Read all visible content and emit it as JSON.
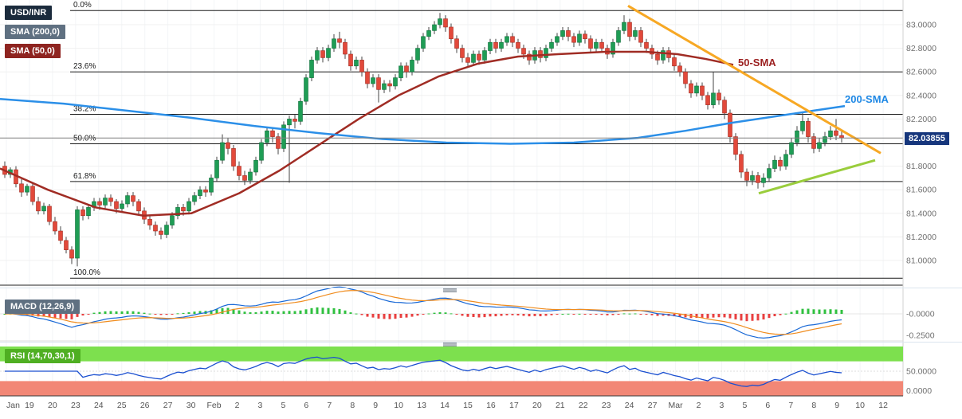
{
  "legend": {
    "symbol": "USD/INR",
    "sma200": "SMA (200,0)",
    "sma50": "SMA (50,0)",
    "macd": "MACD (12,26,9)",
    "rsi": "RSI (14,70,30,1)"
  },
  "annotations": {
    "sma50_line": "50-SMA",
    "sma200_line": "200-SMA"
  },
  "price_axis": {
    "current_price": "82.03855",
    "ticks": [
      {
        "label": "83.0000",
        "price": 83.0
      },
      {
        "label": "82.8000",
        "price": 82.8
      },
      {
        "label": "82.6000",
        "price": 82.6
      },
      {
        "label": "82.4000",
        "price": 82.4
      },
      {
        "label": "82.2000",
        "price": 82.2
      },
      {
        "label": "81.8000",
        "price": 81.8
      },
      {
        "label": "81.6000",
        "price": 81.6
      },
      {
        "label": "81.4000",
        "price": 81.4
      },
      {
        "label": "81.2000",
        "price": 81.2
      },
      {
        "label": "81.0000",
        "price": 81.0
      }
    ]
  },
  "macd_axis": [
    {
      "label": "-0.0000",
      "value": 0
    },
    {
      "label": "-0.2500",
      "value": -0.25
    }
  ],
  "rsi_axis": [
    {
      "label": "50.0000",
      "value": 50
    },
    {
      "label": "0.0000",
      "value": 0
    }
  ],
  "x_axis": {
    "labels": [
      "Jan",
      "19",
      "20",
      "23",
      "24",
      "25",
      "26",
      "27",
      "30",
      "Feb",
      "2",
      "3",
      "5",
      "6",
      "7",
      "8",
      "9",
      "10",
      "13",
      "14",
      "15",
      "16",
      "17",
      "20",
      "21",
      "22",
      "23",
      "24",
      "27",
      "Mar",
      "2",
      "3",
      "5",
      "6",
      "7",
      "8",
      "9",
      "10",
      "12"
    ]
  },
  "fib_levels": [
    {
      "label": "0.0%",
      "price": 83.12
    },
    {
      "label": "23.6%",
      "price": 82.6
    },
    {
      "label": "38.2%",
      "price": 82.24
    },
    {
      "label": "50.0%",
      "price": 81.99
    },
    {
      "label": "61.8%",
      "price": 81.67
    },
    {
      "label": "100.0%",
      "price": 80.85
    }
  ],
  "chart_data": {
    "type": "candlestick",
    "title": "USD/INR with SMA(50), SMA(200), Fibonacci retracement, MACD(12,26,9), RSI(14,70,30,1)",
    "y_range": [
      80.85,
      83.2
    ],
    "current_price": 82.03855,
    "ohlc": [
      [
        81.8,
        81.84,
        81.7,
        81.73
      ],
      [
        81.73,
        81.79,
        81.7,
        81.77
      ],
      [
        81.77,
        81.8,
        81.62,
        81.65
      ],
      [
        81.65,
        81.69,
        81.54,
        81.58
      ],
      [
        81.58,
        81.65,
        81.55,
        81.63
      ],
      [
        81.63,
        81.66,
        81.47,
        81.5
      ],
      [
        81.5,
        81.54,
        81.39,
        81.42
      ],
      [
        81.42,
        81.49,
        81.39,
        81.46
      ],
      [
        81.46,
        81.48,
        81.3,
        81.33
      ],
      [
        81.33,
        81.37,
        81.22,
        81.25
      ],
      [
        81.25,
        81.29,
        81.14,
        81.17
      ],
      [
        81.17,
        81.2,
        81.06,
        81.09
      ],
      [
        81.09,
        81.12,
        80.97,
        81.02
      ],
      [
        81.02,
        81.46,
        80.95,
        81.43
      ],
      [
        81.43,
        81.46,
        81.34,
        81.38
      ],
      [
        81.38,
        81.48,
        81.35,
        81.45
      ],
      [
        81.45,
        81.53,
        81.42,
        81.5
      ],
      [
        81.5,
        81.53,
        81.43,
        81.47
      ],
      [
        81.47,
        81.56,
        81.44,
        81.53
      ],
      [
        81.53,
        81.56,
        81.46,
        81.5
      ],
      [
        81.5,
        81.52,
        81.4,
        81.44
      ],
      [
        81.44,
        81.51,
        81.41,
        81.48
      ],
      [
        81.48,
        81.58,
        81.45,
        81.55
      ],
      [
        81.55,
        81.58,
        81.46,
        81.5
      ],
      [
        81.5,
        81.52,
        81.38,
        81.42
      ],
      [
        81.42,
        81.45,
        81.31,
        81.35
      ],
      [
        81.35,
        81.38,
        81.26,
        81.3
      ],
      [
        81.3,
        81.33,
        81.21,
        81.25
      ],
      [
        81.25,
        81.28,
        81.18,
        81.22
      ],
      [
        81.22,
        81.33,
        81.19,
        81.3
      ],
      [
        81.3,
        81.41,
        81.27,
        81.38
      ],
      [
        81.38,
        81.48,
        81.35,
        81.45
      ],
      [
        81.45,
        81.48,
        81.38,
        81.42
      ],
      [
        81.42,
        81.53,
        81.39,
        81.5
      ],
      [
        81.5,
        81.58,
        81.47,
        81.55
      ],
      [
        81.55,
        81.63,
        81.52,
        81.6
      ],
      [
        81.6,
        81.63,
        81.54,
        81.58
      ],
      [
        81.58,
        81.73,
        81.55,
        81.7
      ],
      [
        81.7,
        81.88,
        81.67,
        81.85
      ],
      [
        81.85,
        82.07,
        81.82,
        82.0
      ],
      [
        82.0,
        82.04,
        81.9,
        81.95
      ],
      [
        81.95,
        81.98,
        81.76,
        81.8
      ],
      [
        81.8,
        81.84,
        81.68,
        81.72
      ],
      [
        81.72,
        81.76,
        81.64,
        81.68
      ],
      [
        81.68,
        81.78,
        81.65,
        81.75
      ],
      [
        81.75,
        81.88,
        81.72,
        81.85
      ],
      [
        81.85,
        82.03,
        81.82,
        82.0
      ],
      [
        82.0,
        82.13,
        81.97,
        82.1
      ],
      [
        82.1,
        82.13,
        82.0,
        82.05
      ],
      [
        82.05,
        82.08,
        81.9,
        81.95
      ],
      [
        81.95,
        82.18,
        81.92,
        82.15
      ],
      [
        82.15,
        82.23,
        81.66,
        82.2
      ],
      [
        82.2,
        82.24,
        82.12,
        82.18
      ],
      [
        82.18,
        82.38,
        82.15,
        82.35
      ],
      [
        82.35,
        82.58,
        82.32,
        82.55
      ],
      [
        82.55,
        82.73,
        82.52,
        82.7
      ],
      [
        82.7,
        82.81,
        82.67,
        82.78
      ],
      [
        82.78,
        82.81,
        82.68,
        82.72
      ],
      [
        82.72,
        82.83,
        82.69,
        82.8
      ],
      [
        82.8,
        82.92,
        82.77,
        82.88
      ],
      [
        82.88,
        82.94,
        82.8,
        82.85
      ],
      [
        82.85,
        82.88,
        82.71,
        82.75
      ],
      [
        82.75,
        82.78,
        82.61,
        82.65
      ],
      [
        82.65,
        82.73,
        82.62,
        82.7
      ],
      [
        82.7,
        82.73,
        82.56,
        82.6
      ],
      [
        82.6,
        82.63,
        82.46,
        82.5
      ],
      [
        82.5,
        82.58,
        82.47,
        82.55
      ],
      [
        82.55,
        82.58,
        82.34,
        82.45
      ],
      [
        82.45,
        82.53,
        82.42,
        82.5
      ],
      [
        82.5,
        82.53,
        82.43,
        82.48
      ],
      [
        82.48,
        82.58,
        82.45,
        82.55
      ],
      [
        82.55,
        82.68,
        82.52,
        82.65
      ],
      [
        82.65,
        82.68,
        82.55,
        82.6
      ],
      [
        82.6,
        82.73,
        82.57,
        82.7
      ],
      [
        82.7,
        82.83,
        82.67,
        82.8
      ],
      [
        82.8,
        82.93,
        82.77,
        82.9
      ],
      [
        82.9,
        82.98,
        82.87,
        82.95
      ],
      [
        82.95,
        83.03,
        82.92,
        83.0
      ],
      [
        83.0,
        83.1,
        82.97,
        83.05
      ],
      [
        83.05,
        83.08,
        82.94,
        82.98
      ],
      [
        82.98,
        83.01,
        82.84,
        82.88
      ],
      [
        82.88,
        82.91,
        82.76,
        82.8
      ],
      [
        82.8,
        82.83,
        82.68,
        82.72
      ],
      [
        82.72,
        82.76,
        82.64,
        82.68
      ],
      [
        82.68,
        82.78,
        82.65,
        82.75
      ],
      [
        82.75,
        82.78,
        82.66,
        82.7
      ],
      [
        82.7,
        82.81,
        82.67,
        82.78
      ],
      [
        82.78,
        82.88,
        82.75,
        82.85
      ],
      [
        82.85,
        82.88,
        82.76,
        82.8
      ],
      [
        82.8,
        82.88,
        82.77,
        82.85
      ],
      [
        82.85,
        82.93,
        82.82,
        82.9
      ],
      [
        82.9,
        82.93,
        82.81,
        82.85
      ],
      [
        82.85,
        82.88,
        82.76,
        82.8
      ],
      [
        82.8,
        82.83,
        82.71,
        82.75
      ],
      [
        82.75,
        82.78,
        82.66,
        82.7
      ],
      [
        82.7,
        82.81,
        82.67,
        82.78
      ],
      [
        82.78,
        82.81,
        82.68,
        82.72
      ],
      [
        82.72,
        82.83,
        82.69,
        82.8
      ],
      [
        82.8,
        82.88,
        82.77,
        82.85
      ],
      [
        82.85,
        82.93,
        82.82,
        82.9
      ],
      [
        82.9,
        82.98,
        82.87,
        82.95
      ],
      [
        82.95,
        82.98,
        82.86,
        82.9
      ],
      [
        82.9,
        82.93,
        82.81,
        82.85
      ],
      [
        82.85,
        82.95,
        82.82,
        82.92
      ],
      [
        82.92,
        82.95,
        82.84,
        82.88
      ],
      [
        82.88,
        82.91,
        82.76,
        82.8
      ],
      [
        82.8,
        82.88,
        82.77,
        82.85
      ],
      [
        82.85,
        82.88,
        82.76,
        82.8
      ],
      [
        82.8,
        82.83,
        82.71,
        82.75
      ],
      [
        82.75,
        82.88,
        82.72,
        82.85
      ],
      [
        82.85,
        82.98,
        82.82,
        82.95
      ],
      [
        82.95,
        83.08,
        82.92,
        83.02
      ],
      [
        83.02,
        83.05,
        82.86,
        82.9
      ],
      [
        82.9,
        82.98,
        82.87,
        82.95
      ],
      [
        82.95,
        82.98,
        82.81,
        82.85
      ],
      [
        82.85,
        82.88,
        82.76,
        82.8
      ],
      [
        82.8,
        82.83,
        82.71,
        82.75
      ],
      [
        82.75,
        82.78,
        82.66,
        82.7
      ],
      [
        82.7,
        82.81,
        82.67,
        82.78
      ],
      [
        82.78,
        82.81,
        82.68,
        82.72
      ],
      [
        82.72,
        82.75,
        82.61,
        82.65
      ],
      [
        82.65,
        82.68,
        82.56,
        82.6
      ],
      [
        82.6,
        82.63,
        82.46,
        82.5
      ],
      [
        82.5,
        82.53,
        82.38,
        82.42
      ],
      [
        82.42,
        82.51,
        82.39,
        82.48
      ],
      [
        82.48,
        82.51,
        82.36,
        82.4
      ],
      [
        82.4,
        82.43,
        82.28,
        82.32
      ],
      [
        82.32,
        82.6,
        82.29,
        82.42
      ],
      [
        82.42,
        82.45,
        82.32,
        82.36
      ],
      [
        82.36,
        82.39,
        82.2,
        82.25
      ],
      [
        82.25,
        82.28,
        82.0,
        82.05
      ],
      [
        82.05,
        82.08,
        81.85,
        81.9
      ],
      [
        81.9,
        81.93,
        81.7,
        81.75
      ],
      [
        81.75,
        81.78,
        81.63,
        81.68
      ],
      [
        81.68,
        81.76,
        81.64,
        81.72
      ],
      [
        81.72,
        81.75,
        81.61,
        81.66
      ],
      [
        81.66,
        81.74,
        81.62,
        81.7
      ],
      [
        81.7,
        81.82,
        81.67,
        81.78
      ],
      [
        81.78,
        81.89,
        81.75,
        81.85
      ],
      [
        81.85,
        81.88,
        81.76,
        81.8
      ],
      [
        81.8,
        81.94,
        81.77,
        81.9
      ],
      [
        81.9,
        82.04,
        81.87,
        82.0
      ],
      [
        82.0,
        82.14,
        81.97,
        82.1
      ],
      [
        82.1,
        82.26,
        82.07,
        82.18
      ],
      [
        82.18,
        82.21,
        82.0,
        82.05
      ],
      [
        82.05,
        82.08,
        81.91,
        81.95
      ],
      [
        81.95,
        82.04,
        81.92,
        82.0
      ],
      [
        82.0,
        82.09,
        81.97,
        82.05
      ],
      [
        82.05,
        82.14,
        82.02,
        82.1
      ],
      [
        82.1,
        82.2,
        82.02,
        82.06
      ],
      [
        82.06,
        82.1,
        82.0,
        82.04
      ]
    ],
    "overlays": {
      "sma200_points": [
        [
          0,
          82.37
        ],
        [
          80,
          82.33
        ],
        [
          160,
          82.27
        ],
        [
          240,
          82.21
        ],
        [
          320,
          82.14
        ],
        [
          400,
          82.08
        ],
        [
          480,
          82.03
        ],
        [
          560,
          82.0
        ],
        [
          640,
          81.99
        ],
        [
          720,
          82.0
        ],
        [
          800,
          82.04
        ],
        [
          860,
          82.1
        ],
        [
          920,
          82.17
        ],
        [
          980,
          82.23
        ],
        [
          1020,
          82.27
        ],
        [
          1060,
          82.31
        ]
      ],
      "sma50_points": [
        [
          0,
          81.78
        ],
        [
          60,
          81.6
        ],
        [
          120,
          81.45
        ],
        [
          180,
          81.38
        ],
        [
          240,
          81.4
        ],
        [
          300,
          81.57
        ],
        [
          350,
          81.76
        ],
        [
          400,
          81.98
        ],
        [
          450,
          82.2
        ],
        [
          500,
          82.4
        ],
        [
          550,
          82.56
        ],
        [
          600,
          82.67
        ],
        [
          650,
          82.73
        ],
        [
          700,
          82.75
        ],
        [
          760,
          82.77
        ],
        [
          810,
          82.77
        ],
        [
          850,
          82.75
        ],
        [
          885,
          82.71
        ],
        [
          920,
          82.66
        ]
      ],
      "downtrend_line": [
        [
          788,
          83.16
        ],
        [
          1105,
          81.91
        ]
      ],
      "uptrend_line": [
        [
          952,
          81.57
        ],
        [
          1098,
          81.85
        ]
      ]
    },
    "indicators": {
      "macd": {
        "params": [
          12,
          26,
          9
        ],
        "derived_from": "ohlc_closes"
      },
      "rsi": {
        "params": [
          14,
          70,
          30,
          1
        ],
        "derived_from": "ohlc_closes"
      }
    },
    "style": {
      "bull": "#1f9d55",
      "bear": "#e2493b",
      "bull_border": "#11713c",
      "bear_border": "#a32d22",
      "wick": "#444444",
      "sma200": "#2b8fe8",
      "sma50": "#a02c24",
      "trend_down": "#f7a824",
      "trend_up": "#9acd3c",
      "macd_line": "#1868d6",
      "macd_signal": "#f08c1e",
      "hist_up": "#30c040",
      "hist_down": "#e84040",
      "rsi_line": "#1a4fd0",
      "rsi_upper": "#7de04e",
      "rsi_lower": "#f28776",
      "price_line": "#808080",
      "fib": "#1a1a1a"
    }
  }
}
